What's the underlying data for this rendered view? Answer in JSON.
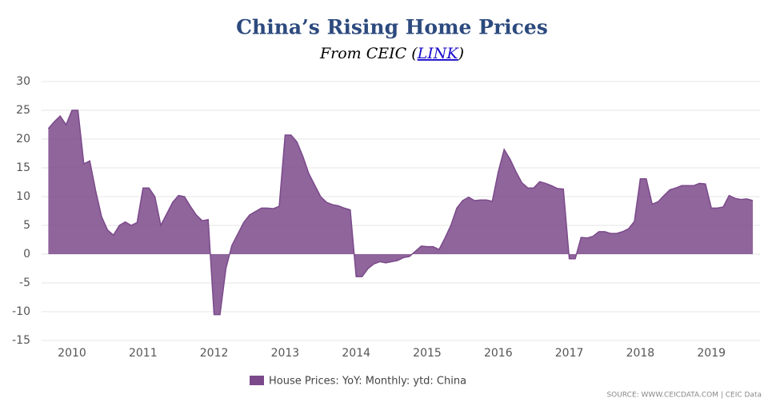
{
  "chart_data": {
    "type": "area",
    "title": "China’s Rising Home Prices",
    "subtitle": [
      "From CEIC (",
      "LINK",
      ")"
    ],
    "series_name": "House Prices: YoY: Monthly: ytd: China",
    "source": "SOURCE: WWW.CEICDATA.COM | CEIC Data",
    "color": "#7b4a8b",
    "categories": [
      null,
      null,
      null,
      null,
      "2010",
      null,
      null,
      null,
      null,
      null,
      null,
      null,
      null,
      null,
      null,
      null,
      "2011",
      null,
      null,
      null,
      null,
      null,
      null,
      null,
      null,
      null,
      null,
      null,
      "2012",
      null,
      null,
      null,
      null,
      null,
      null,
      null,
      null,
      null,
      null,
      null,
      "2013",
      null,
      null,
      null,
      null,
      null,
      null,
      null,
      null,
      null,
      null,
      null,
      "2014",
      null,
      null,
      null,
      null,
      null,
      null,
      null,
      null,
      null,
      null,
      null,
      "2015",
      null,
      null,
      null,
      null,
      null,
      null,
      null,
      null,
      null,
      null,
      null,
      "2016",
      null,
      null,
      null,
      null,
      null,
      null,
      null,
      null,
      null,
      null,
      null,
      "2017",
      null,
      null,
      null,
      null,
      null,
      null,
      null,
      null,
      null,
      null,
      null,
      "2018",
      null,
      null,
      null,
      null,
      null,
      null,
      null,
      null,
      null,
      null,
      null,
      "2019",
      null,
      null,
      null,
      null,
      null,
      null,
      null
    ],
    "values": [
      21.8,
      23,
      24,
      22.5,
      25,
      25,
      15.7,
      16.2,
      11,
      6.5,
      4.2,
      3.3,
      5,
      5.6,
      5,
      5.5,
      11.5,
      11.5,
      10,
      5,
      7,
      9,
      10.2,
      10,
      8.3,
      6.8,
      5.8,
      6,
      -10.5,
      -10.5,
      -2.5,
      1.5,
      3.5,
      5.5,
      6.8,
      7.4,
      8,
      8,
      7.9,
      8.3,
      20.7,
      20.7,
      19.5,
      17,
      14,
      12,
      10,
      9,
      8.6,
      8.4,
      8,
      7.7,
      -3.9,
      -3.9,
      -2.5,
      -1.7,
      -1.3,
      -1.5,
      -1.3,
      -1.1,
      -0.6,
      -0.4,
      0.5,
      1.4,
      1.3,
      1.3,
      0.8,
      2.8,
      5,
      8,
      9.3,
      9.9,
      9.3,
      9.4,
      9.4,
      9.2,
      14.3,
      18.2,
      16.5,
      14.3,
      12.4,
      11.5,
      11.5,
      12.6,
      12.3,
      11.9,
      11.4,
      11.3,
      -0.8,
      -0.8,
      2.9,
      2.8,
      3.1,
      3.9,
      3.9,
      3.6,
      3.6,
      3.9,
      4.4,
      5.7,
      13.1,
      13.1,
      8.7,
      9.1,
      10.2,
      11.2,
      11.5,
      11.9,
      11.9,
      11.9,
      12.3,
      12.2,
      8,
      8,
      8.2,
      10.2,
      9.7,
      9.5,
      9.6,
      9.3
    ],
    "ylim": [
      -15,
      30
    ],
    "yticks": [
      -15,
      -10,
      -5,
      0,
      5,
      10,
      15,
      20,
      25,
      30
    ],
    "grid": true
  }
}
